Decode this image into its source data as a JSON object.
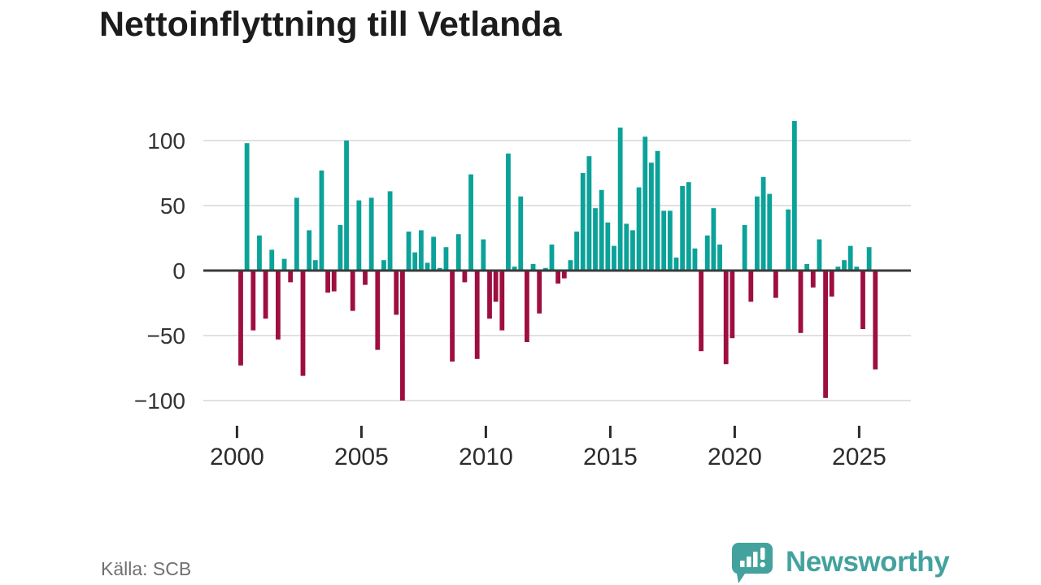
{
  "title": "Nettoinflyttning till Vetlanda",
  "source": "Källa: SCB",
  "logo": {
    "text": "Newsworthy"
  },
  "colors": {
    "positive_bar": "#0aa299",
    "negative_bar": "#9e0e41",
    "gridline": "#e1e1e1",
    "zero_line": "#3a3a3a",
    "axis_text": "#333333",
    "tick_mark": "#2b2b2b",
    "title_text": "#1c1c1c",
    "source_text": "#707070",
    "logo_teal": "#43a29e"
  },
  "chart_data": {
    "type": "bar",
    "title": "Nettoinflyttning till Vetlanda",
    "frequency": "quarterly",
    "x_start": "2000 Q1",
    "x_end": "2025 Q3",
    "x_tick_labels": [
      "2000",
      "2005",
      "2010",
      "2015",
      "2020",
      "2025"
    ],
    "quarters_per_tick": 20,
    "y_ticks": [
      100,
      50,
      0,
      -50,
      -100
    ],
    "y_tick_labels": [
      "100",
      "50",
      "0",
      "−50",
      "−100"
    ],
    "ylim": [
      -110,
      120
    ],
    "grid": true,
    "legend": false,
    "series": [
      {
        "name": "Nettoinflyttning till Vetlanda",
        "values": [
          -73,
          98,
          -46,
          27,
          -37,
          16,
          -53,
          9,
          -9,
          56,
          -81,
          31,
          8,
          77,
          -17,
          -16,
          35,
          100,
          -31,
          54,
          -11,
          56,
          -61,
          8,
          61,
          -34,
          -100,
          30,
          14,
          31,
          6,
          26,
          2,
          18,
          -70,
          28,
          -9,
          74,
          -68,
          24,
          -37,
          -24,
          -46,
          90,
          3,
          57,
          -55,
          5,
          -33,
          2,
          20,
          -10,
          -6,
          8,
          30,
          75,
          88,
          48,
          62,
          37,
          19,
          110,
          36,
          31,
          64,
          103,
          83,
          92,
          46,
          46,
          10,
          65,
          68,
          17,
          -62,
          27,
          48,
          20,
          -72,
          -52,
          0,
          35,
          -24,
          57,
          72,
          59,
          -21,
          0,
          47,
          115,
          -48,
          5,
          -13,
          24,
          -98,
          -20,
          3,
          8,
          19,
          3,
          -45,
          18,
          -76
        ]
      }
    ]
  }
}
